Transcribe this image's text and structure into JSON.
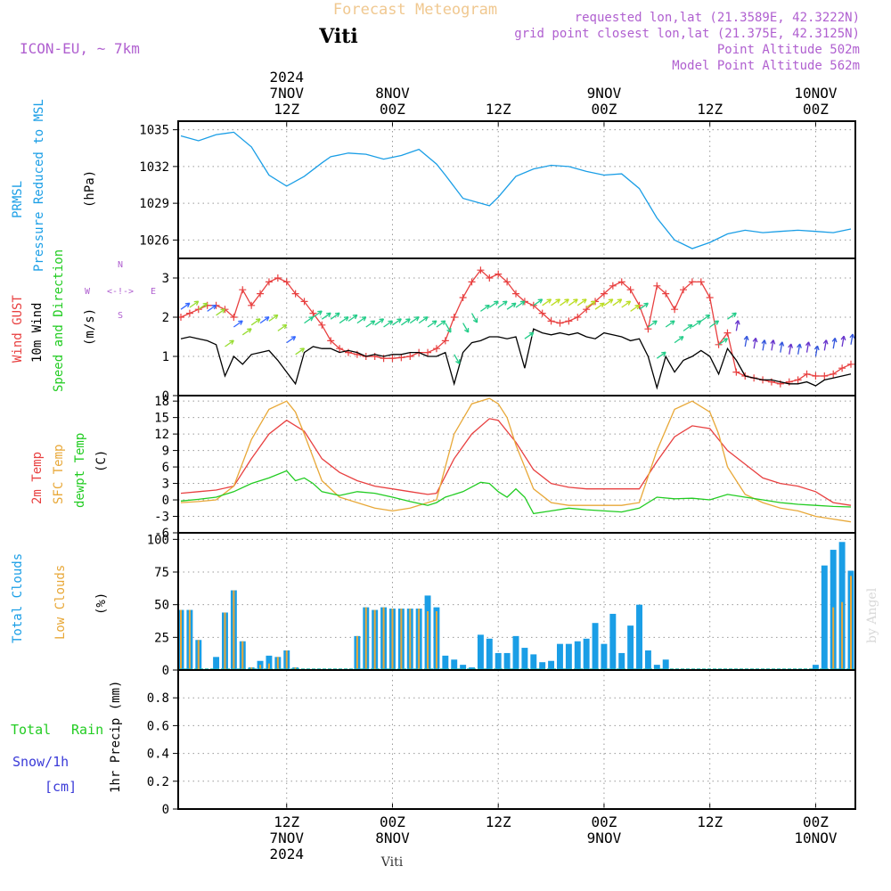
{
  "header": {
    "forecast_title": "Forecast Meteogram",
    "location": "Viti",
    "model": "ICON-EU, ~ 7km",
    "requested": "requested lon,lat (21.3589E, 42.3222N)",
    "grid_point": "grid point closest lon,lat (21.375E, 42.3125N)",
    "point_altitude": "Point Altitude 502m",
    "model_altitude": "Model Point Altitude 562m",
    "credit": "by Angel",
    "footer_location": "Viti"
  },
  "colors": {
    "pressure": "#1a9ee6",
    "gust": "#e84040",
    "wind": "#000000",
    "temp2m": "#e84040",
    "sfc": "#e8a838",
    "dewpt": "#22cc22",
    "total_cloud": "#1a9ee6",
    "low_cloud": "#e8a838",
    "rain": "#22cc22",
    "snow": "#3a3ad8",
    "header_purple": "#b060d0",
    "forecast_title": "#f0c890",
    "credit": "#d8d8d8"
  },
  "time_axis": {
    "top_labels": [
      {
        "h": 12,
        "lines": [
          "2024",
          "7NOV",
          "12Z"
        ]
      },
      {
        "h": 24,
        "lines": [
          "8NOV",
          "00Z"
        ]
      },
      {
        "h": 36,
        "lines": [
          "12Z"
        ]
      },
      {
        "h": 48,
        "lines": [
          "9NOV",
          "00Z"
        ]
      },
      {
        "h": 60,
        "lines": [
          "12Z"
        ]
      },
      {
        "h": 72,
        "lines": [
          "10NOV",
          "00Z"
        ]
      }
    ],
    "bottom_labels": [
      {
        "h": 12,
        "lines": [
          "12Z",
          "7NOV",
          "2024"
        ]
      },
      {
        "h": 24,
        "lines": [
          "00Z",
          "8NOV"
        ]
      },
      {
        "h": 36,
        "lines": [
          "12Z"
        ]
      },
      {
        "h": 48,
        "lines": [
          "00Z",
          "9NOV"
        ]
      },
      {
        "h": 60,
        "lines": [
          "12Z"
        ]
      },
      {
        "h": 72,
        "lines": [
          "00Z",
          "10NOV"
        ]
      }
    ]
  },
  "panels": {
    "pressure": {
      "labels": [
        "PRMSL",
        "Pressure Reduced to MSL",
        "(hPa)"
      ],
      "ticks": [
        "1026",
        "1029",
        "1032",
        "1035"
      ]
    },
    "wind": {
      "labels": [
        "Wind GUST",
        "10m Wind",
        "Speed and Direction",
        "(m/s)"
      ],
      "ticks": [
        "0",
        "1",
        "2",
        "3"
      ],
      "compass": {
        "n": "N",
        "s": "S",
        "w": "W",
        "e": "E",
        "center": "<-!->"
      }
    },
    "temp": {
      "labels": [
        "2m Temp",
        "SFC Temp",
        "dewpt Temp",
        "(C)"
      ],
      "ticks": [
        "-6",
        "-3",
        "0",
        "3",
        "6",
        "9",
        "12",
        "15",
        "18"
      ]
    },
    "clouds": {
      "labels": [
        "Total Clouds",
        "Low Clouds",
        "(%)"
      ],
      "ticks": [
        "0",
        "25",
        "50",
        "75",
        "100"
      ]
    },
    "precip": {
      "labels": [
        "Total",
        "Rain",
        "Snow/1h",
        "[cm]",
        "1hr Precip (mm)"
      ],
      "ticks": [
        "0",
        "0.2",
        "0.4",
        "0.6",
        "0.8"
      ]
    }
  },
  "chart_data": [
    {
      "type": "line",
      "x_unit": "hours from 7NOV 00Z",
      "series": [
        {
          "name": "PRMSL",
          "x": [
            0,
            2,
            4,
            6,
            8,
            10,
            12,
            14,
            16,
            17,
            19,
            21,
            23,
            25,
            27,
            29,
            30,
            32,
            35,
            36,
            38,
            40,
            42,
            44,
            46,
            48,
            50,
            52,
            54,
            56,
            58,
            60,
            62,
            64,
            66,
            68,
            70,
            72,
            74,
            76
          ],
          "values": [
            1034.5,
            1034.1,
            1034.6,
            1034.8,
            1033.6,
            1031.3,
            1030.4,
            1031.2,
            1032.3,
            1032.8,
            1033.1,
            1033.0,
            1032.6,
            1032.9,
            1033.4,
            1032.2,
            1031.3,
            1029.4,
            1028.8,
            1029.5,
            1031.2,
            1031.8,
            1032.1,
            1032.0,
            1031.6,
            1031.3,
            1031.4,
            1030.2,
            1027.8,
            1026.0,
            1025.3,
            1025.8,
            1026.5,
            1026.8,
            1026.6,
            1026.7,
            1026.8,
            1026.7,
            1026.6,
            1026.9
          ]
        }
      ],
      "ylim": [
        1024.5,
        1035.7
      ]
    },
    {
      "type": "line",
      "x_unit": "hours from 7NOV 00Z",
      "series": [
        {
          "name": "Wind GUST",
          "x": [
            0,
            1,
            2,
            3,
            4,
            5,
            6,
            7,
            8,
            9,
            10,
            11,
            12,
            13,
            14,
            15,
            16,
            17,
            18,
            19,
            20,
            21,
            22,
            23,
            24,
            25,
            26,
            27,
            28,
            29,
            30,
            31,
            32,
            33,
            34,
            35,
            36,
            37,
            38,
            39,
            40,
            41,
            42,
            43,
            44,
            45,
            46,
            47,
            48,
            49,
            50,
            51,
            52,
            53,
            54,
            55,
            56,
            57,
            58,
            59,
            60,
            61,
            62,
            63,
            64,
            65,
            66,
            67,
            68,
            69,
            70,
            71,
            72,
            73,
            74,
            75,
            76
          ],
          "values": [
            2.0,
            2.1,
            2.2,
            2.3,
            2.3,
            2.2,
            2.0,
            2.7,
            2.3,
            2.6,
            2.9,
            3.0,
            2.9,
            2.6,
            2.4,
            2.1,
            1.8,
            1.4,
            1.2,
            1.1,
            1.05,
            1.0,
            1.0,
            0.95,
            0.95,
            0.97,
            1.0,
            1.1,
            1.1,
            1.2,
            1.4,
            2.0,
            2.5,
            2.9,
            3.2,
            3.0,
            3.1,
            2.9,
            2.6,
            2.4,
            2.3,
            2.1,
            1.9,
            1.85,
            1.9,
            2.0,
            2.2,
            2.4,
            2.6,
            2.8,
            2.9,
            2.7,
            2.3,
            1.7,
            2.8,
            2.6,
            2.2,
            2.7,
            2.9,
            2.9,
            2.5,
            1.3,
            1.6,
            0.6,
            0.5,
            0.45,
            0.4,
            0.35,
            0.3,
            0.35,
            0.4,
            0.55,
            0.5,
            0.5,
            0.55,
            0.7,
            0.8
          ]
        },
        {
          "name": "10m Wind",
          "x": [
            0,
            1,
            2,
            3,
            4,
            5,
            6,
            7,
            8,
            9,
            10,
            11,
            12,
            13,
            14,
            15,
            16,
            17,
            18,
            19,
            20,
            21,
            22,
            23,
            24,
            25,
            26,
            27,
            28,
            29,
            30,
            31,
            32,
            33,
            34,
            35,
            36,
            37,
            38,
            39,
            40,
            41,
            42,
            43,
            44,
            45,
            46,
            47,
            48,
            49,
            50,
            51,
            52,
            53,
            54,
            55,
            56,
            57,
            58,
            59,
            60,
            61,
            62,
            63,
            64,
            65,
            66,
            67,
            68,
            69,
            70,
            71,
            72,
            73,
            74,
            75,
            76
          ],
          "values": [
            1.45,
            1.5,
            1.45,
            1.4,
            1.3,
            0.5,
            1.0,
            0.8,
            1.05,
            1.1,
            1.15,
            0.9,
            0.6,
            0.3,
            1.1,
            1.25,
            1.2,
            1.2,
            1.1,
            1.15,
            1.1,
            1.0,
            1.05,
            1.0,
            1.05,
            1.05,
            1.1,
            1.1,
            1.0,
            1.0,
            1.1,
            0.3,
            1.1,
            1.35,
            1.4,
            1.5,
            1.5,
            1.45,
            1.5,
            0.7,
            1.7,
            1.6,
            1.55,
            1.6,
            1.55,
            1.6,
            1.5,
            1.45,
            1.6,
            1.55,
            1.5,
            1.4,
            1.45,
            1.0,
            0.2,
            1.0,
            0.6,
            0.9,
            1.0,
            1.15,
            1.0,
            0.55,
            1.2,
            0.9,
            0.5,
            0.45,
            0.4,
            0.4,
            0.35,
            0.3,
            0.3,
            0.35,
            0.25,
            0.4,
            0.45,
            0.5,
            0.55
          ]
        }
      ],
      "ylim": [
        0,
        3.5
      ]
    },
    {
      "type": "line",
      "x_unit": "hours from 7NOV 00Z",
      "series": [
        {
          "name": "2m Temp",
          "x": [
            0,
            2,
            4,
            6,
            8,
            10,
            12,
            14,
            16,
            18,
            20,
            22,
            24,
            26,
            28,
            29,
            31,
            33,
            35,
            36,
            38,
            40,
            42,
            44,
            46,
            48,
            50,
            52,
            54,
            56,
            58,
            60,
            62,
            64,
            66,
            68,
            70,
            72,
            74,
            76
          ],
          "values": [
            1.2,
            1.5,
            1.8,
            2.5,
            7.5,
            12.0,
            14.5,
            12.5,
            7.5,
            5.0,
            3.5,
            2.5,
            2.0,
            1.5,
            1.0,
            1.2,
            7.5,
            12.0,
            14.8,
            14.5,
            10.5,
            5.5,
            3.0,
            2.3,
            2.0,
            2.0,
            2.0,
            2.0,
            7.0,
            11.5,
            13.5,
            13.0,
            9.0,
            6.5,
            4.0,
            3.0,
            2.5,
            1.5,
            -0.5,
            -1.0
          ]
        },
        {
          "name": "SFC Temp",
          "x": [
            0,
            2,
            4,
            6,
            8,
            10,
            12,
            13,
            14,
            16,
            18,
            20,
            22,
            24,
            26,
            28,
            29,
            31,
            33,
            35,
            36,
            37,
            38,
            40,
            42,
            44,
            46,
            48,
            50,
            52,
            54,
            56,
            58,
            60,
            61,
            62,
            64,
            66,
            68,
            70,
            72,
            74,
            76
          ],
          "values": [
            -0.5,
            -0.3,
            0.0,
            2.5,
            11.0,
            16.5,
            18.0,
            16.0,
            12.0,
            3.5,
            0.5,
            -0.5,
            -1.5,
            -2.0,
            -1.5,
            -0.5,
            0.0,
            12.0,
            17.5,
            18.5,
            17.5,
            15.0,
            10.0,
            2.0,
            -0.5,
            -1.0,
            -1.0,
            -1.0,
            -1.0,
            -0.5,
            9.0,
            16.5,
            18.0,
            16.0,
            12.0,
            6.0,
            1.0,
            -0.5,
            -1.5,
            -2.0,
            -3.0,
            -3.5,
            -4.0
          ]
        },
        {
          "name": "dewpt Temp",
          "x": [
            0,
            2,
            4,
            6,
            8,
            10,
            12,
            13,
            14,
            15,
            16,
            18,
            20,
            22,
            24,
            26,
            28,
            29,
            30,
            32,
            34,
            35,
            36,
            37,
            38,
            39,
            40,
            42,
            44,
            46,
            48,
            50,
            52,
            54,
            56,
            58,
            60,
            62,
            64,
            66,
            68,
            70,
            72,
            74,
            76
          ],
          "values": [
            -0.2,
            0.1,
            0.5,
            1.5,
            3.0,
            4.0,
            5.3,
            3.5,
            4.0,
            3.0,
            1.5,
            0.8,
            1.5,
            1.2,
            0.5,
            -0.3,
            -1.0,
            -0.5,
            0.5,
            1.5,
            3.2,
            3.0,
            1.5,
            0.5,
            2.0,
            0.5,
            -2.5,
            -2.0,
            -1.5,
            -1.8,
            -2.0,
            -2.2,
            -1.5,
            0.5,
            0.2,
            0.3,
            0.0,
            1.0,
            0.5,
            0.0,
            -0.5,
            -0.8,
            -1.0,
            -1.2,
            -1.3
          ]
        }
      ],
      "ylim": [
        -6,
        19
      ]
    },
    {
      "type": "bar",
      "x_unit": "hours from 7NOV 00Z",
      "x": [
        0,
        1,
        2,
        3,
        4,
        5,
        6,
        7,
        8,
        9,
        10,
        11,
        12,
        13,
        14,
        15,
        16,
        17,
        18,
        19,
        20,
        21,
        22,
        23,
        24,
        25,
        26,
        27,
        28,
        29,
        30,
        31,
        32,
        33,
        34,
        35,
        36,
        37,
        38,
        39,
        40,
        41,
        42,
        43,
        44,
        45,
        46,
        47,
        48,
        49,
        50,
        51,
        52,
        53,
        54,
        55,
        56,
        57,
        58,
        59,
        60,
        61,
        62,
        63,
        64,
        65,
        66,
        67,
        68,
        69,
        70,
        71,
        72,
        73,
        74,
        75,
        76
      ],
      "series": [
        {
          "name": "Total Clouds",
          "values": [
            46,
            46,
            23,
            0,
            10,
            44,
            61,
            22,
            2,
            7,
            11,
            10,
            15,
            2,
            0,
            0,
            0,
            0,
            0,
            0,
            26,
            48,
            46,
            48,
            47,
            47,
            47,
            47,
            57,
            48,
            11,
            8,
            4,
            2,
            27,
            24,
            13,
            13,
            26,
            17,
            12,
            6,
            7,
            20,
            20,
            22,
            24,
            36,
            20,
            43,
            13,
            34,
            50,
            15,
            4,
            8,
            0,
            0,
            0,
            0,
            0,
            0,
            0,
            0,
            0,
            0,
            0,
            0,
            0,
            0,
            0,
            0,
            4,
            80,
            92,
            98,
            76
          ]
        },
        {
          "name": "Low Clouds",
          "values": [
            46,
            46,
            23,
            0,
            0,
            44,
            61,
            22,
            2,
            4,
            5,
            10,
            15,
            2,
            0,
            0,
            0,
            0,
            0,
            0,
            26,
            48,
            46,
            48,
            47,
            47,
            47,
            47,
            45,
            45,
            0,
            0,
            0,
            0,
            0,
            0,
            0,
            0,
            0,
            0,
            0,
            0,
            0,
            0,
            0,
            0,
            0,
            0,
            0,
            0,
            0,
            0,
            0,
            0,
            0,
            0,
            0,
            0,
            0,
            0,
            0,
            0,
            0,
            0,
            0,
            0,
            0,
            0,
            0,
            0,
            0,
            0,
            0,
            0,
            48,
            52,
            72
          ]
        }
      ],
      "ylim": [
        0,
        105
      ]
    },
    {
      "type": "line",
      "x_unit": "hours from 7NOV 00Z",
      "series": [
        {
          "name": "1hr Precip",
          "x": [
            0,
            76
          ],
          "values": [
            0,
            0
          ]
        }
      ],
      "ylim": [
        0,
        1
      ]
    }
  ]
}
